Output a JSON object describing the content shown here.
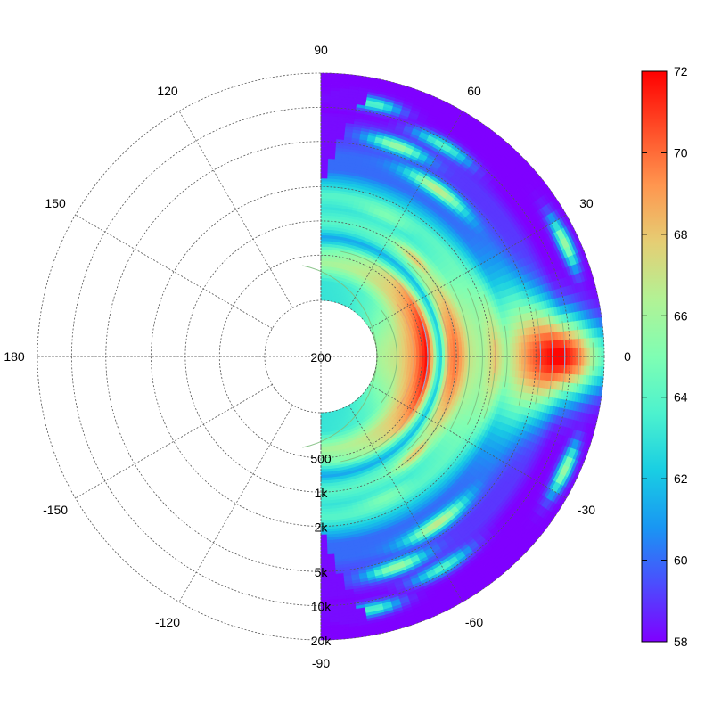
{
  "chart_data": {
    "type": "heatmap",
    "projection": "polar",
    "title": "",
    "angle_axis": {
      "ticks": [
        90,
        120,
        150,
        180,
        -150,
        -120,
        -90,
        -60,
        -30,
        0,
        30,
        60
      ],
      "labels": [
        "90",
        "120",
        "150",
        "180",
        "-150",
        "-120",
        "-90",
        "-60",
        "-30",
        "0",
        "30",
        "60"
      ],
      "data_range": [
        -90,
        90
      ]
    },
    "radial_axis": {
      "scale": "log",
      "range": [
        200,
        20000
      ],
      "ticks": [
        200,
        500,
        1000,
        2000,
        5000,
        10000,
        20000
      ],
      "labels": [
        "200",
        "500",
        "1k",
        "2k",
        "5k",
        "10k",
        "20k"
      ]
    },
    "grid": true,
    "colorbar": {
      "range": [
        58,
        72
      ],
      "ticks": [
        58,
        60,
        62,
        64,
        66,
        68,
        70,
        72
      ],
      "labels": [
        "58",
        "60",
        "62",
        "64",
        "66",
        "68",
        "70",
        "72"
      ],
      "colormap": "rainbow",
      "stops": [
        "#7f00ff",
        "#4c4cfe",
        "#1996f3",
        "#19cee3",
        "#4cf2ce",
        "#7ffeb3",
        "#b2f295",
        "#e5ce74",
        "#ff964f",
        "#ff4c27",
        "#ff0000"
      ],
      "placement": "right"
    },
    "contours": [
      {
        "level": 65,
        "color": "#7fbf7f"
      },
      {
        "level": 68,
        "color": "#e5a070"
      },
      {
        "level": 71,
        "color": "#8fa0e8"
      }
    ],
    "bands": [
      {
        "f": 200,
        "on_axis": 66,
        "width_deg": 40,
        "off_axis": 63
      },
      {
        "f": 300,
        "on_axis": 67,
        "width_deg": 45,
        "off_axis": 63
      },
      {
        "f": 420,
        "on_axis": 69,
        "width_deg": 55,
        "off_axis": 66
      },
      {
        "f": 560,
        "on_axis": 72,
        "width_deg": 55,
        "off_axis": 64
      },
      {
        "f": 720,
        "on_axis": 62,
        "width_deg": 50,
        "off_axis": 61
      },
      {
        "f": 850,
        "on_axis": 69,
        "width_deg": 45,
        "off_axis": 63
      },
      {
        "f": 1000,
        "on_axis": 70,
        "width_deg": 40,
        "off_axis": 64
      },
      {
        "f": 1300,
        "on_axis": 67,
        "width_deg": 35,
        "off_axis": 63
      },
      {
        "f": 1700,
        "on_axis": 66,
        "width_deg": 30,
        "off_axis": 64
      },
      {
        "f": 2200,
        "on_axis": 68,
        "width_deg": 25,
        "off_axis": 62
      },
      {
        "f": 2800,
        "on_axis": 66,
        "width_deg": 22,
        "off_axis": 60
      },
      {
        "f": 4000,
        "on_axis": 69,
        "width_deg": 18,
        "off_axis": 60
      },
      {
        "f": 5500,
        "on_axis": 71,
        "width_deg": 15,
        "off_axis": 59
      },
      {
        "f": 7000,
        "on_axis": 72,
        "width_deg": 12,
        "off_axis": 59
      },
      {
        "f": 9000,
        "on_axis": 72,
        "width_deg": 10,
        "off_axis": 58
      },
      {
        "f": 12000,
        "on_axis": 70,
        "width_deg": 9,
        "off_axis": 58
      },
      {
        "f": 16000,
        "on_axis": 66,
        "width_deg": 8,
        "off_axis": 58
      },
      {
        "f": 20000,
        "on_axis": 64,
        "width_deg": 7,
        "off_axis": 58
      }
    ],
    "side_lobes": [
      {
        "f": 1000,
        "angle": 45,
        "level": 68,
        "spread_deg": 12
      },
      {
        "f": 1000,
        "angle": -45,
        "level": 68,
        "spread_deg": 12
      },
      {
        "f": 1500,
        "angle": 65,
        "level": 65,
        "spread_deg": 10
      },
      {
        "f": 1500,
        "angle": -65,
        "level": 65,
        "spread_deg": 10
      },
      {
        "f": 4000,
        "angle": 55,
        "level": 67,
        "spread_deg": 10
      },
      {
        "f": 4000,
        "angle": -55,
        "level": 67,
        "spread_deg": 10
      },
      {
        "f": 6000,
        "angle": 70,
        "level": 66,
        "spread_deg": 8
      },
      {
        "f": 6000,
        "angle": -70,
        "level": 66,
        "spread_deg": 8
      },
      {
        "f": 9000,
        "angle": 60,
        "level": 64,
        "spread_deg": 8
      },
      {
        "f": 9000,
        "angle": -60,
        "level": 64,
        "spread_deg": 8
      },
      {
        "f": 12000,
        "angle": 78,
        "level": 64,
        "spread_deg": 6
      },
      {
        "f": 12000,
        "angle": -78,
        "level": 64,
        "spread_deg": 6
      },
      {
        "f": 15000,
        "angle": 25,
        "level": 66,
        "spread_deg": 6
      },
      {
        "f": 15000,
        "angle": -25,
        "level": 66,
        "spread_deg": 6
      }
    ]
  }
}
